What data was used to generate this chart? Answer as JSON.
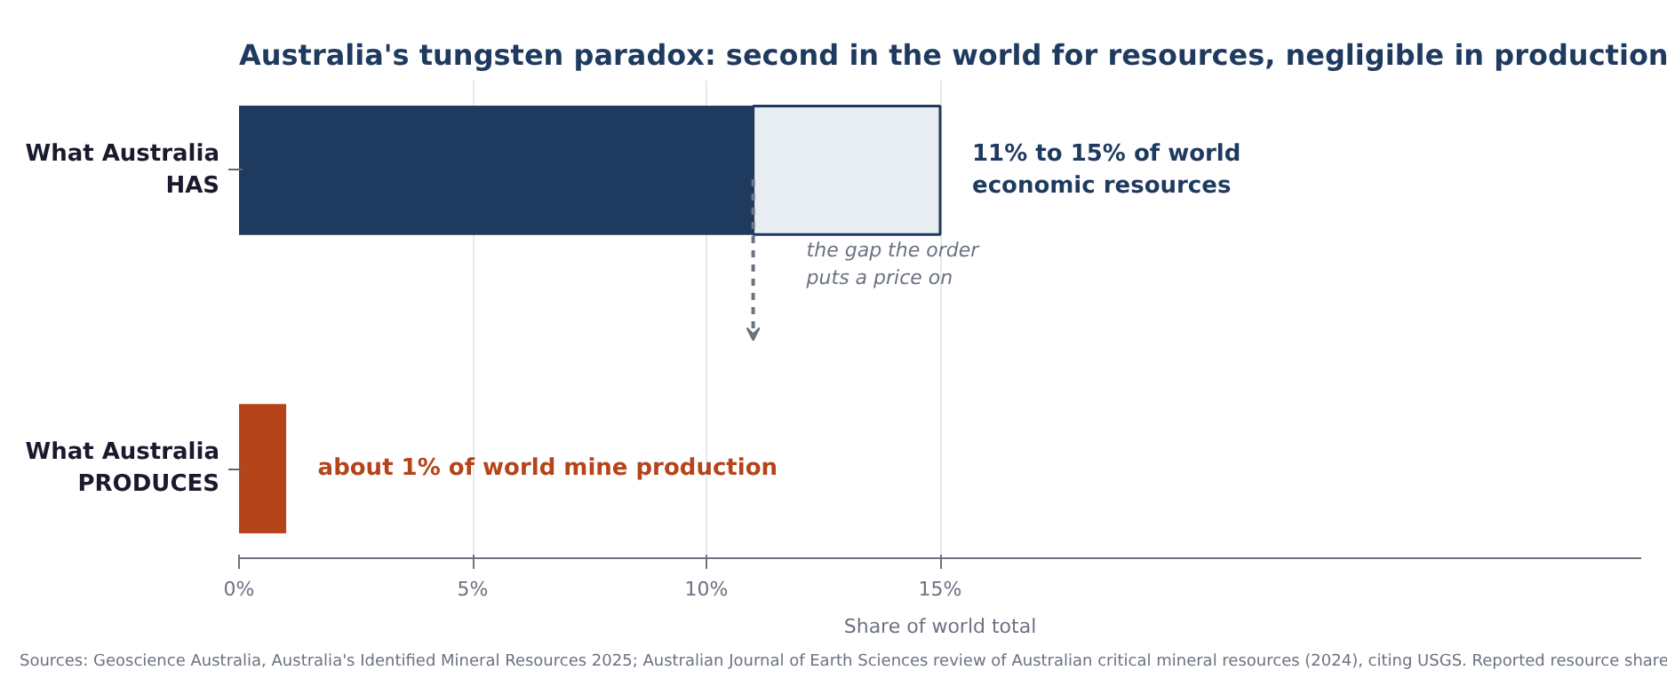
{
  "chart_data": {
    "type": "bar",
    "orientation": "horizontal",
    "stacked": true,
    "title": "Australia's tungsten paradox: second in the world for resources, negligible in production",
    "xlabel": "Share of world total",
    "categories": [
      "What Australia\nHAS",
      "What Australia\nPRODUCES"
    ],
    "series": [
      {
        "colors": [
          "#1f3a5f",
          "#b5441b"
        ],
        "values": [
          11,
          1
        ]
      },
      {
        "color": "#e8edf1",
        "values": [
          4,
          null
        ]
      }
    ],
    "xlim": [
      0,
      30
    ],
    "xticks": [
      {
        "value": 0,
        "label": "0%"
      },
      {
        "value": 5,
        "label": "5%"
      },
      {
        "value": 10,
        "label": "10%"
      },
      {
        "value": 15,
        "label": "15%"
      }
    ],
    "grid": "x",
    "annotations": [
      "11% to 15% of world\neconomic resources",
      "about 1% of world mine production",
      "the gap the order\nputs a price on",
      "Sources: Geoscience Australia, Australia's Identified Mineral Resources 2025; Australian Journal of Earth Sciences review of Australian critical mineral resources (2024), citing USGS. Reported resource share"
    ]
  }
}
